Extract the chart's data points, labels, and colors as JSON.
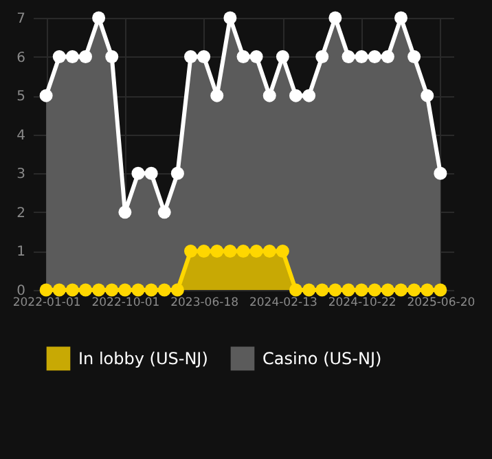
{
  "chart_data": {
    "type": "area",
    "categories": [
      "2022-01-01",
      null,
      null,
      null,
      null,
      null,
      "2022-10-01",
      null,
      null,
      null,
      null,
      null,
      "2023-06-18",
      null,
      null,
      null,
      null,
      null,
      "2024-02-13",
      null,
      null,
      null,
      null,
      null,
      "2024-10-22",
      null,
      null,
      null,
      null,
      null,
      "2025-06-20"
    ],
    "series": [
      {
        "name": "In lobby (US-NJ)",
        "color": "#ffd700",
        "values": [
          0,
          0,
          0,
          0,
          0,
          0,
          0,
          0,
          0,
          0,
          0,
          1,
          1,
          1,
          1,
          1,
          1,
          1,
          1,
          0,
          0,
          0,
          0,
          0,
          0,
          0,
          0,
          0,
          0,
          0,
          0
        ]
      },
      {
        "name": "Casino (US-NJ)",
        "color": "#ffffff",
        "values": [
          5,
          6,
          6,
          6,
          7,
          6,
          2,
          3,
          3,
          2,
          3,
          6,
          6,
          5,
          7,
          6,
          6,
          5,
          6,
          5,
          5,
          6,
          7,
          6,
          6,
          6,
          6,
          7,
          6,
          5,
          3
        ]
      }
    ],
    "ylim": [
      0,
      7
    ],
    "yticks": [
      0,
      1,
      2,
      3,
      4,
      5,
      6,
      7
    ],
    "grid": true,
    "legend": "bottom",
    "marker": "circle"
  }
}
